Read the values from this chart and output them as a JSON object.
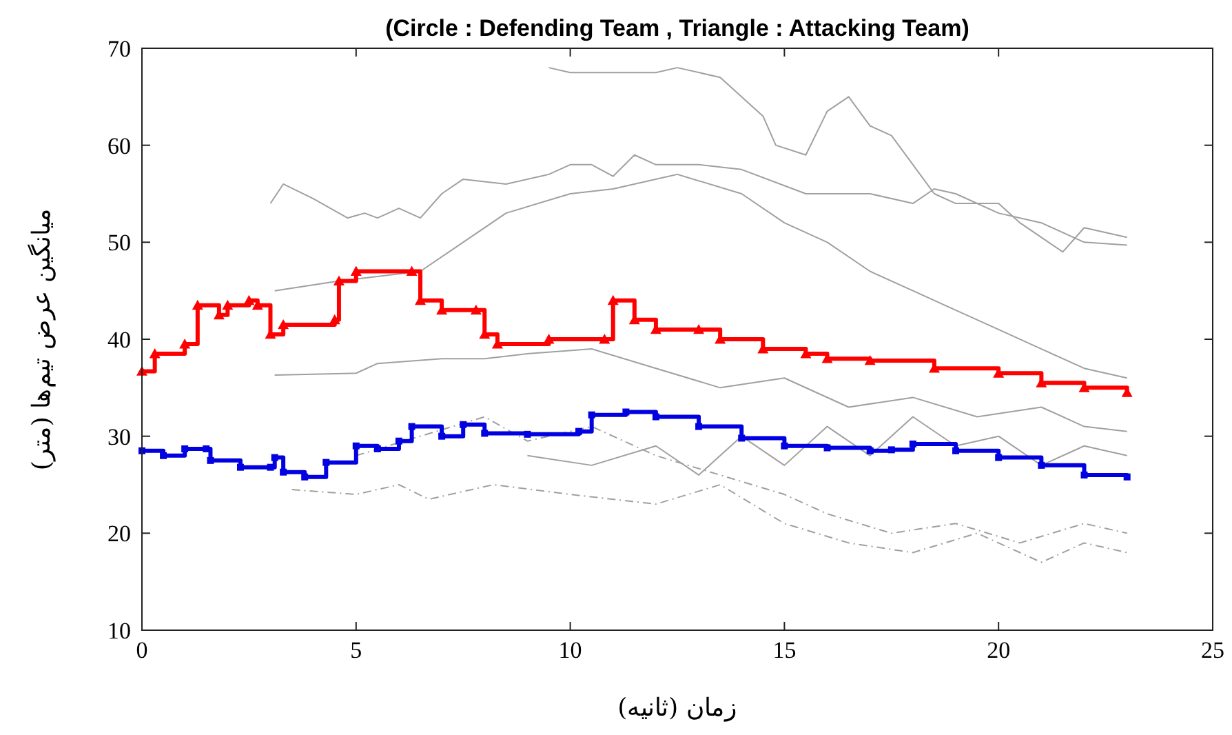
{
  "chart_data": {
    "type": "line",
    "title": "(Circle : Defending Team , Triangle : Attacking Team)",
    "xlabel": "زمان (ثانیه)",
    "ylabel": "میانگین عرض تیم‌ها (متر)",
    "xlim": [
      0,
      25
    ],
    "xticks": [
      0,
      5,
      10,
      15,
      20,
      25
    ],
    "ylim": [
      10,
      70
    ],
    "yticks": [
      10,
      20,
      30,
      40,
      50,
      60,
      70
    ],
    "grid": false,
    "series": [
      {
        "color": "#a0a0a0",
        "line_style": "solid",
        "marker": "none",
        "x": [
          9.5,
          10,
          12,
          12.5,
          13.5,
          14.5,
          14.8,
          15.5,
          16,
          16.5,
          17,
          17.5,
          18.5,
          19,
          20,
          20.5,
          21.5,
          22,
          22.5,
          23
        ],
        "values": [
          68,
          67.5,
          67.5,
          68,
          67,
          63,
          60,
          59,
          63.5,
          65,
          62,
          61,
          55,
          54,
          54,
          52,
          49,
          51.5,
          51,
          50.5
        ]
      },
      {
        "color": "#a0a0a0",
        "line_style": "solid",
        "marker": "none",
        "x": [
          3,
          3.3,
          4,
          4.8,
          5.2,
          5.5,
          6,
          6.5,
          7,
          7.5,
          8.5,
          9.5,
          10,
          10.5,
          11,
          11.5,
          12,
          13,
          14,
          15.5,
          17,
          18,
          18.5,
          19,
          20,
          21,
          22,
          23
        ],
        "values": [
          54,
          56,
          54.5,
          52.5,
          53,
          52.5,
          53.5,
          52.5,
          55,
          56.5,
          56,
          57,
          58,
          58,
          56.8,
          59,
          58,
          58,
          57.5,
          55,
          55,
          54,
          55.5,
          55,
          53,
          52,
          50,
          49.7
        ]
      },
      {
        "color": "#a0a0a0",
        "line_style": "solid",
        "marker": "none",
        "x": [
          3.1,
          4.6,
          6.5,
          7.5,
          8.5,
          10,
          11,
          12.5,
          14,
          15,
          16,
          17,
          18,
          19,
          20,
          21,
          22,
          23
        ],
        "values": [
          45,
          46,
          47,
          50,
          53,
          55,
          55.5,
          57,
          55,
          52,
          50,
          47,
          45,
          43,
          41,
          39,
          37,
          36
        ]
      },
      {
        "color": "#a0a0a0",
        "line_style": "solid",
        "marker": "none",
        "x": [
          3.1,
          5,
          5.5,
          7,
          8,
          9,
          10.5,
          12,
          13.5,
          15,
          16.5,
          18,
          19.5,
          21,
          22,
          23
        ],
        "values": [
          36.3,
          36.5,
          37.5,
          38,
          38,
          38.5,
          39,
          37,
          35,
          36,
          33,
          34,
          32,
          33,
          31,
          30.5
        ]
      },
      {
        "color": "#a0a0a0",
        "line_style": "dashed",
        "marker": "none",
        "x": [
          3.5,
          5,
          6,
          6.7,
          8.2,
          10,
          12,
          13.5,
          15,
          16.5,
          18,
          19.5,
          21,
          22,
          23
        ],
        "values": [
          24.5,
          24,
          25,
          23.5,
          25,
          24,
          23,
          25,
          21,
          19,
          18,
          20,
          17,
          19,
          18
        ]
      },
      {
        "color": "#a0a0a0",
        "line_style": "dashed",
        "marker": "none",
        "x": [
          5,
          6.5,
          8,
          9,
          10.5,
          12,
          13.5,
          15,
          16,
          17.5,
          19,
          20.5,
          22,
          23
        ],
        "values": [
          28,
          30,
          32,
          29.5,
          31,
          28,
          26,
          24,
          22,
          20,
          21,
          19,
          21,
          20
        ]
      },
      {
        "color": "#a0a0a0",
        "line_style": "solid",
        "marker": "none",
        "x": [
          9,
          10.5,
          12,
          13,
          14,
          15,
          16,
          17,
          18,
          19,
          20,
          21,
          22,
          23
        ],
        "values": [
          28,
          27,
          29,
          26,
          30,
          27,
          31,
          28,
          32,
          29,
          30,
          27,
          29,
          28
        ]
      },
      {
        "type": "step",
        "color": "#ff0000",
        "line_style": "solid",
        "marker": "triangle",
        "x": [
          0,
          0.3,
          1,
          1.3,
          1.8,
          2,
          2.5,
          2.7,
          3,
          3.3,
          4.5,
          4.6,
          5,
          6.3,
          6.5,
          7,
          7.8,
          8,
          8.3,
          9.5,
          10.8,
          11,
          11.5,
          12,
          13,
          13.5,
          14.5,
          15.5,
          16,
          17,
          18.5,
          20,
          21,
          22,
          23
        ],
        "values": [
          36.7,
          38.5,
          39.5,
          43.5,
          42.5,
          43.5,
          44,
          43.5,
          40.5,
          41.5,
          42,
          46,
          47,
          47,
          44,
          43,
          43,
          40.5,
          39.5,
          40,
          40,
          44,
          42,
          41,
          41,
          40,
          39,
          38.5,
          38,
          37.8,
          37,
          36.5,
          35.5,
          35,
          34.5
        ]
      },
      {
        "type": "step",
        "color": "#0000e0",
        "line_style": "solid",
        "marker": "square",
        "x": [
          0,
          0.5,
          1,
          1.5,
          1.6,
          2.3,
          3,
          3.1,
          3.3,
          3.8,
          4.3,
          5,
          5.5,
          6,
          6.3,
          7,
          7.5,
          8,
          9,
          10.2,
          10.5,
          11.3,
          12,
          13,
          14,
          15,
          16,
          17,
          17.5,
          18,
          19,
          20,
          21,
          22,
          23
        ],
        "values": [
          28.5,
          28,
          28.7,
          28.7,
          27.5,
          26.8,
          26.8,
          27.8,
          26.3,
          25.8,
          27.3,
          29,
          28.7,
          29.5,
          31,
          30,
          31.2,
          30.3,
          30.2,
          30.5,
          32.2,
          32.5,
          32,
          31,
          29.8,
          29,
          28.8,
          28.5,
          28.6,
          29.2,
          28.5,
          27.8,
          27,
          26,
          25.8
        ]
      }
    ]
  }
}
